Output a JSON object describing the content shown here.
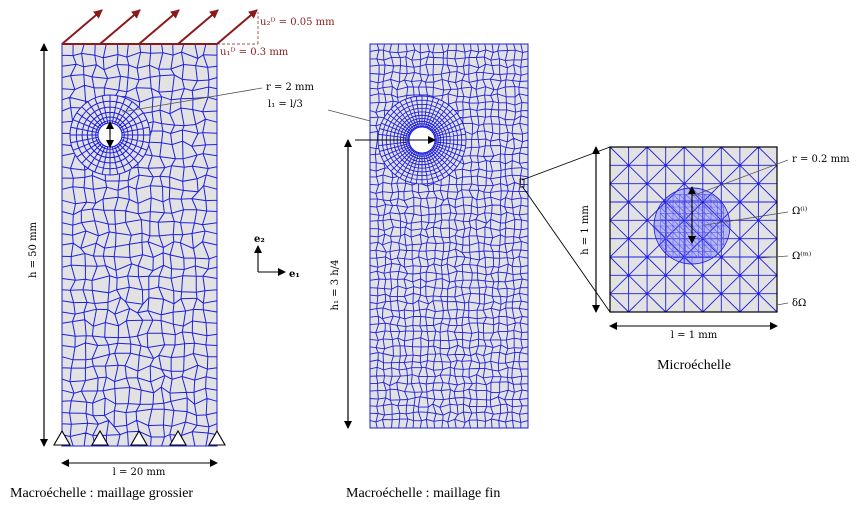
{
  "labels": {
    "u2": "u₂ᴰ = 0.05 mm",
    "u1": "u₁ᴰ = 0.3 mm",
    "r_macro": "r = 2 mm",
    "l1": "l₁ = l/3",
    "h": "h = 50 mm",
    "l": "l = 20 mm",
    "h1": "h₁ = 3 h/4",
    "e2": "e₂",
    "e1": "e₁",
    "r_micro": "r = 0.2 mm",
    "omega_i": "Ω⁽ⁱ⁾",
    "omega_m": "Ω⁽ᵐ⁾",
    "delta_omega": "δΩ",
    "h_micro": "h = 1 mm",
    "l_micro": "l = 1 mm"
  },
  "captions": {
    "coarse": "Macroéchelle : maillage grossier",
    "fine": "Macroéchelle : maillage fin",
    "micro": "Microéchelle"
  },
  "colors": {
    "mesh_line": "#1f1fe0",
    "mesh_fill": "#e2e2e2",
    "load_arrow": "#8b1a1a",
    "hole": "#ffffff"
  },
  "icons": [
    "support-triangle-icon",
    "load-arrow-icon"
  ]
}
